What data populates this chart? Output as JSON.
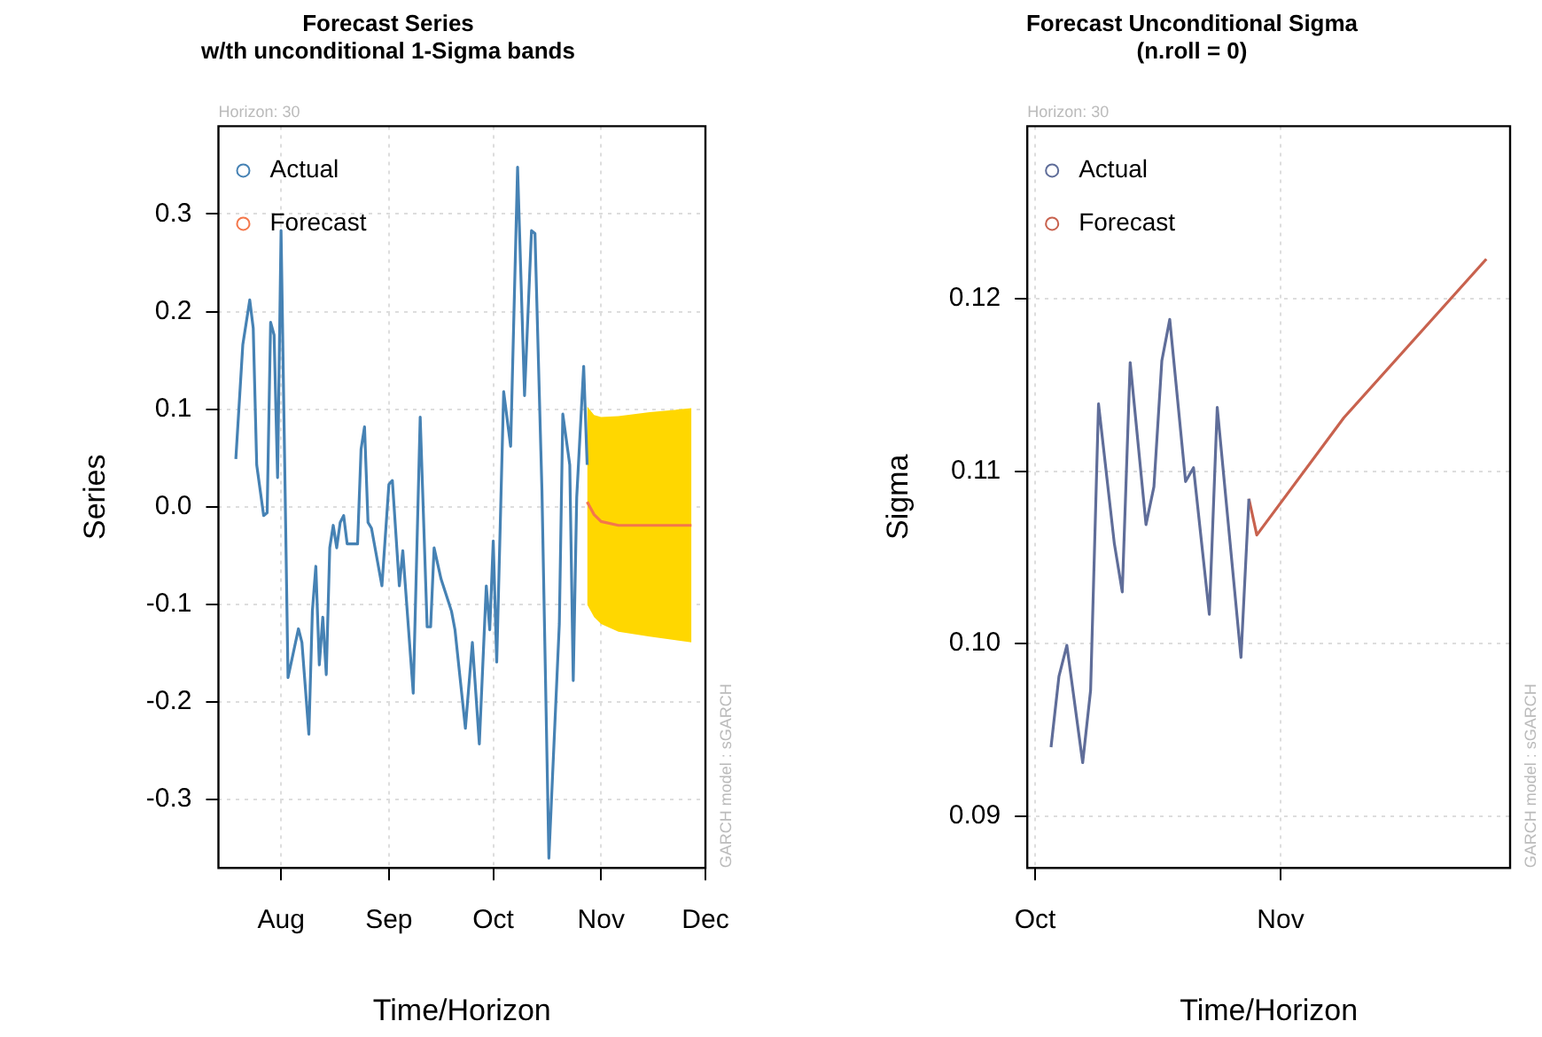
{
  "chart_data": [
    {
      "type": "line",
      "title": "Forecast Series\nw/th unconditional 1-Sigma bands",
      "xlabel": "Time/Horizon",
      "ylabel": "Series",
      "annotations": [
        "Horizon: 30",
        "GARCH model : sGARCH"
      ],
      "xlim": [
        "--07-14",
        "--12-01"
      ],
      "xticks": [
        {
          "value": "--08-01",
          "label": "Aug"
        },
        {
          "value": "--09-01",
          "label": "Sep"
        },
        {
          "value": "--10-01",
          "label": "Oct"
        },
        {
          "value": "--11-01",
          "label": "Nov"
        },
        {
          "value": "--12-01",
          "label": "Dec"
        }
      ],
      "ylim": [
        -0.37,
        0.39
      ],
      "yticks": [
        -0.3,
        -0.2,
        -0.1,
        {
          "value": 0,
          "label": "0.0"
        },
        0.1,
        0.2,
        0.3
      ],
      "grid": true,
      "legend": "top left",
      "series": [
        {
          "name": "Actual",
          "color": "#4682b4",
          "x": [
            "--07-19",
            "--07-21",
            "--07-23",
            "--07-24",
            "--07-25",
            "--07-27",
            "--07-28",
            "--07-29",
            "--07-30",
            "--07-31",
            "--08-01",
            "--08-03",
            "--08-06",
            "--08-07",
            "--08-09",
            "--08-10",
            "--08-11",
            "--08-12",
            "--08-13",
            "--08-14",
            "--08-15",
            "--08-16",
            "--08-17",
            "--08-18",
            "--08-19",
            "--08-20",
            "--08-23",
            "--08-24",
            "--08-25",
            "--08-26",
            "--08-27",
            "--08-30",
            "--09-01",
            "--09-02",
            "--09-04",
            "--09-05",
            "--09-08",
            "--09-10",
            "--09-12",
            "--09-13",
            "--09-14",
            "--09-16",
            "--09-19",
            "--09-20",
            "--09-23",
            "--09-25",
            "--09-27",
            "--09-29",
            "--09-30",
            "--10-01",
            "--10-02",
            "--10-04",
            "--10-06",
            "--10-08",
            "--10-10",
            "--10-12",
            "--10-13",
            "--10-15",
            "--10-17",
            "--10-20",
            "--10-21",
            "--10-23",
            "--10-24",
            "--10-25",
            "--10-27",
            "--10-28"
          ],
          "values": [
            0.049,
            0.166,
            0.212,
            0.183,
            0.043,
            -0.009,
            -0.006,
            0.189,
            0.176,
            0.03,
            0.283,
            -0.175,
            -0.125,
            -0.139,
            -0.233,
            -0.107,
            -0.061,
            -0.162,
            -0.113,
            -0.172,
            -0.042,
            -0.019,
            -0.042,
            -0.016,
            -0.009,
            -0.038,
            -0.038,
            0.059,
            0.082,
            -0.016,
            -0.022,
            -0.081,
            0.023,
            0.027,
            -0.081,
            -0.045,
            -0.191,
            0.092,
            -0.123,
            -0.123,
            -0.042,
            -0.074,
            -0.107,
            -0.126,
            -0.227,
            -0.139,
            -0.243,
            -0.081,
            -0.126,
            -0.035,
            -0.159,
            0.118,
            0.062,
            0.348,
            0.114,
            0.283,
            0.28,
            0.017,
            -0.36,
            -0.12,
            0.095,
            0.043,
            -0.178,
            0.01,
            0.144,
            0.043
          ]
        },
        {
          "name": "Forecast",
          "color": "#f4774b",
          "x": [
            "--10-28",
            "--10-30",
            "--11-01",
            "--11-06",
            "--11-15",
            "--11-27"
          ],
          "values": [
            0.005,
            -0.008,
            -0.015,
            -0.019,
            -0.019,
            -0.019
          ],
          "lower": [
            -0.1,
            -0.113,
            -0.12,
            -0.128,
            -0.133,
            -0.139
          ],
          "upper": [
            0.103,
            0.094,
            0.092,
            0.093,
            0.097,
            0.101
          ]
        }
      ]
    },
    {
      "type": "line",
      "title": "Forecast Unconditional Sigma\n(n.roll = 0)",
      "xlabel": "Time/Horizon",
      "ylabel": "Sigma",
      "annotations": [
        "Horizon: 30",
        "GARCH model : sGARCH"
      ],
      "xlim": [
        "--09-30",
        "--11-30"
      ],
      "xticks": [
        {
          "value": "--10-01",
          "label": "Oct"
        },
        {
          "value": "--11-01",
          "label": "Nov"
        }
      ],
      "ylim": [
        0.087,
        0.13
      ],
      "yticks": [
        0.09,
        {
          "value": 0.1,
          "label": "0.10"
        },
        0.11,
        0.12
      ],
      "grid": true,
      "legend": "top left",
      "series": [
        {
          "name": "Actual",
          "color": "#5f6d99",
          "x": [
            "--10-03",
            "--10-04",
            "--10-05",
            "--10-07",
            "--10-08",
            "--10-09",
            "--10-11",
            "--10-12",
            "--10-13",
            "--10-15",
            "--10-16",
            "--10-17",
            "--10-18",
            "--10-20",
            "--10-21",
            "--10-23",
            "--10-24",
            "--10-27",
            "--10-28"
          ],
          "values": [
            0.094,
            0.0981,
            0.0999,
            0.0931,
            0.0973,
            0.1139,
            0.1058,
            0.103,
            0.1163,
            0.1069,
            0.1091,
            0.1164,
            0.1188,
            0.1094,
            0.1102,
            0.1017,
            0.1137,
            0.0992,
            0.1084
          ]
        },
        {
          "name": "Forecast",
          "color": "#c8624e",
          "x": [
            "--10-28",
            "--10-29",
            "--11-09",
            "--11-27"
          ],
          "values": [
            0.1084,
            0.1063,
            0.1131,
            0.1223
          ]
        }
      ]
    }
  ]
}
